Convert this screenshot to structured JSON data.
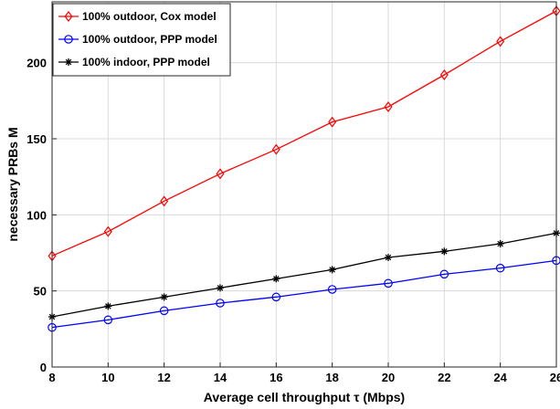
{
  "chart_data": {
    "type": "line",
    "xlabel": "Average cell throughput τ (Mbps)",
    "ylabel": "necessary PRBs M",
    "xlim": [
      8,
      26
    ],
    "ylim": [
      0,
      240
    ],
    "xticks": [
      8,
      10,
      12,
      14,
      16,
      18,
      20,
      22,
      24,
      26
    ],
    "yticks": [
      0,
      50,
      100,
      150,
      200
    ],
    "grid": true,
    "legend_position": "top-left",
    "x": [
      8,
      10,
      12,
      14,
      16,
      18,
      20,
      22,
      24,
      26
    ],
    "series": [
      {
        "name": "100% outdoor, Cox model",
        "color": "#ff0000",
        "marker": "diamond",
        "values": [
          73,
          89,
          109,
          127,
          143,
          161,
          171,
          192,
          214,
          234
        ]
      },
      {
        "name": "100% outdoor, PPP model",
        "color": "#0000ff",
        "marker": "circle",
        "values": [
          26,
          31,
          37,
          42,
          46,
          51,
          55,
          61,
          65,
          70
        ]
      },
      {
        "name": "100% indoor, PPP model",
        "color": "#000000",
        "marker": "asterisk",
        "values": [
          33,
          40,
          46,
          52,
          58,
          64,
          72,
          76,
          81,
          88
        ]
      }
    ]
  }
}
